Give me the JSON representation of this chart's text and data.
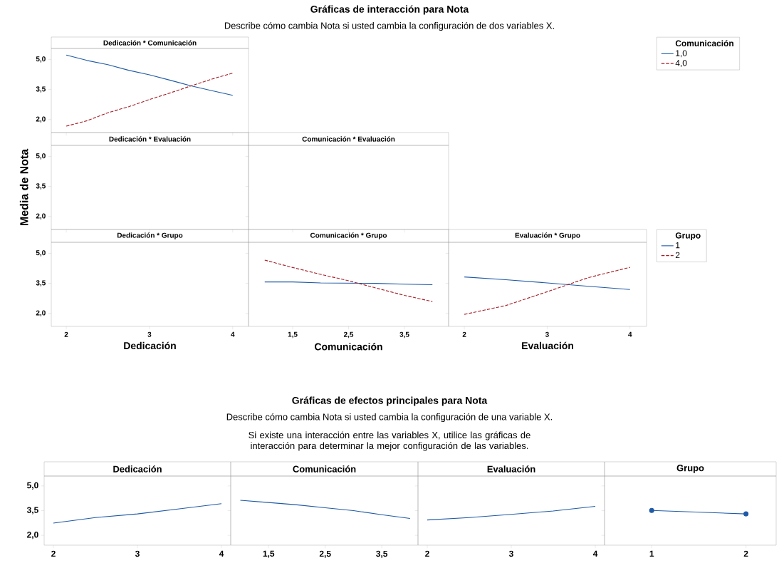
{
  "chart_data": [
    {
      "type": "line",
      "title": "Dedicación * Comunicación",
      "annotations": [
        "Gráficas de interacción para Nota",
        "Describe cómo cambia Nota si usted cambia la configuración de dos variables X."
      ],
      "x": [
        2,
        2.25,
        2.5,
        2.75,
        3,
        3.25,
        3.5,
        3.75,
        4
      ],
      "series": [
        {
          "name": "1,0",
          "color": "#1f5aa6",
          "values": [
            5.22,
            4.95,
            4.74,
            4.46,
            4.23,
            3.96,
            3.68,
            3.44,
            3.21
          ]
        },
        {
          "name": "4,0",
          "color": "#a51c24",
          "line_style": "dashed",
          "values": [
            1.67,
            1.94,
            2.34,
            2.64,
            3.0,
            3.33,
            3.68,
            4.02,
            4.32
          ]
        }
      ],
      "xlim": [
        1.82,
        4.19
      ],
      "xticks": [
        2,
        3,
        4
      ],
      "ylim": [
        1.35,
        5.55
      ],
      "yticks": [
        {
          "value": 2,
          "label": "2,0"
        },
        {
          "value": 3.5,
          "label": "3,5"
        },
        {
          "value": 5,
          "label": "5,0"
        }
      ],
      "tick_labels": "y",
      "legend": "right",
      "legend_title": "Comunicación"
    },
    {
      "type": "line",
      "title": "Dedicación * Evaluación",
      "ylabel": "Media de Nota",
      "xlim": [
        1.82,
        4.19
      ],
      "xticks": [
        2,
        3,
        4
      ],
      "ylim": [
        1.35,
        5.55
      ],
      "yticks": [
        {
          "value": 2,
          "label": "2,0"
        },
        {
          "value": 3.5,
          "label": "3,5"
        },
        {
          "value": 5,
          "label": "5,0"
        }
      ],
      "tick_labels": "y"
    },
    {
      "type": "line",
      "title": "Comunicación * Evaluación",
      "xlim": [
        0.71,
        4.29
      ],
      "xticks": [
        1.5,
        2.5,
        3.5
      ],
      "ylim": [
        1.35,
        5.55
      ],
      "yticks": [
        2,
        3.5,
        5
      ],
      "tick_labels": false
    },
    {
      "type": "line",
      "title": "Dedicación * Grupo",
      "xlabel": "Dedicación",
      "xlim": [
        1.82,
        4.19
      ],
      "xticks": [
        2,
        3,
        4
      ],
      "ylim": [
        1.35,
        5.55
      ],
      "yticks": [
        {
          "value": 2,
          "label": "2,0"
        },
        {
          "value": 3.5,
          "label": "3,5"
        },
        {
          "value": 5,
          "label": "5,0"
        }
      ]
    },
    {
      "type": "line",
      "title": "Comunicación * Grupo",
      "xlabel": "Comunicación",
      "x": [
        1,
        1.5,
        2,
        2.5,
        3,
        3.5,
        4
      ],
      "series": [
        {
          "color": "#1f5aa6",
          "values": [
            3.57,
            3.57,
            3.52,
            3.51,
            3.5,
            3.46,
            3.43
          ]
        },
        {
          "color": "#a51c24",
          "line_style": "dashed",
          "values": [
            4.66,
            4.29,
            3.95,
            3.63,
            3.26,
            2.9,
            2.59
          ]
        }
      ],
      "xlim": [
        0.71,
        4.29
      ],
      "xticks": [
        {
          "value": 1.5,
          "label": "1,5"
        },
        {
          "value": 2.5,
          "label": "2,5"
        },
        {
          "value": 3.5,
          "label": "3,5"
        }
      ],
      "ylim": [
        1.35,
        5.55
      ],
      "yticks": [
        2,
        3.5,
        5
      ],
      "tick_labels": "x"
    },
    {
      "type": "line",
      "title": "Evaluación * Grupo",
      "xlabel": "Evaluación",
      "x": [
        2,
        2.5,
        3,
        3.5,
        4
      ],
      "series": [
        {
          "name": "1",
          "color": "#1f5aa6",
          "values": [
            3.82,
            3.68,
            3.52,
            3.35,
            3.19
          ]
        },
        {
          "name": "2",
          "color": "#a51c24",
          "line_style": "dashed",
          "values": [
            1.95,
            2.39,
            3.08,
            3.79,
            4.3
          ]
        }
      ],
      "xlim": [
        1.81,
        4.2
      ],
      "xticks": [
        2,
        3,
        4
      ],
      "ylim": [
        1.35,
        5.55
      ],
      "yticks": [
        2,
        3.5,
        5
      ],
      "tick_labels": "x",
      "legend": "right",
      "legend_title": "Grupo"
    },
    {
      "type": "line",
      "title": "Dedicación",
      "annotations": [
        "Gráficas de efectos principales para Nota",
        "Describe cómo cambia Nota si usted cambia la configuración de una variable X.",
        "Si existe una interacción entre las variables X, utilice las gráficas de interacción para determinar la mejor configuración de las variables."
      ],
      "x": [
        2,
        2.5,
        3,
        3.5,
        4
      ],
      "series": [
        {
          "color": "#1f5aa6",
          "values": [
            2.74,
            3.08,
            3.3,
            3.61,
            3.92
          ]
        }
      ],
      "xlim": [
        1.89,
        4.11
      ],
      "xticks": [
        2,
        3,
        4
      ],
      "ylim": [
        1.4,
        5.6
      ],
      "yticks": [
        {
          "value": 2,
          "label": "2,0"
        },
        {
          "value": 3.5,
          "label": "3,5"
        },
        {
          "value": 5,
          "label": "5,0"
        }
      ]
    },
    {
      "type": "line",
      "title": "Comunicación",
      "x": [
        1,
        1.5,
        2,
        2.5,
        3,
        3.5,
        4
      ],
      "series": [
        {
          "color": "#1f5aa6",
          "values": [
            4.13,
            3.99,
            3.85,
            3.67,
            3.5,
            3.25,
            3.02
          ]
        }
      ],
      "xlim": [
        0.83,
        4.14
      ],
      "xticks": [
        {
          "value": 1.5,
          "label": "1,5"
        },
        {
          "value": 2.5,
          "label": "2,5"
        },
        {
          "value": 3.5,
          "label": "3,5"
        }
      ],
      "ylim": [
        1.4,
        5.6
      ],
      "yticks": [
        2,
        3.5,
        5
      ],
      "tick_labels": "x"
    },
    {
      "type": "line",
      "title": "Evaluación",
      "x": [
        2,
        2.5,
        3,
        3.5,
        4
      ],
      "series": [
        {
          "color": "#1f5aa6",
          "values": [
            2.93,
            3.08,
            3.27,
            3.48,
            3.76
          ]
        }
      ],
      "xlim": [
        1.89,
        4.11
      ],
      "xticks": [
        2,
        3,
        4
      ],
      "ylim": [
        1.4,
        5.6
      ],
      "yticks": [
        2,
        3.5,
        5
      ],
      "tick_labels": "x"
    },
    {
      "type": "line",
      "title": "Grupo",
      "x": [
        1,
        2
      ],
      "marker": "circle",
      "series": [
        {
          "color": "#1f5aa6",
          "values": [
            3.51,
            3.3
          ]
        }
      ],
      "xlim": [
        0.5,
        2.32
      ],
      "xticks": [
        1,
        2
      ],
      "ylim": [
        1.4,
        5.6
      ],
      "yticks": [
        2,
        3.5,
        5
      ],
      "tick_labels": "x"
    }
  ]
}
